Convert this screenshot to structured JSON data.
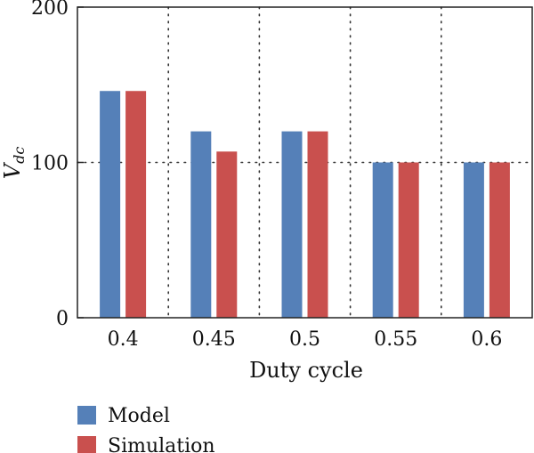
{
  "chart_data": {
    "type": "bar",
    "categories": [
      "0.4",
      "0.45",
      "0.5",
      "0.55",
      "0.6"
    ],
    "series": [
      {
        "name": "Model",
        "values": [
          146,
          120,
          120,
          100,
          100
        ],
        "color": "#5580b8"
      },
      {
        "name": "Simulation",
        "values": [
          146,
          107,
          120,
          100,
          100
        ],
        "color": "#c9504e"
      }
    ],
    "xlabel": "Duty cycle",
    "ylabel_main": "V",
    "ylabel_sub": "dc",
    "ylim": [
      0,
      200
    ],
    "yticks": [
      "0",
      "100",
      "200"
    ],
    "grid": "dotted",
    "legend_position": "bottom-left"
  }
}
